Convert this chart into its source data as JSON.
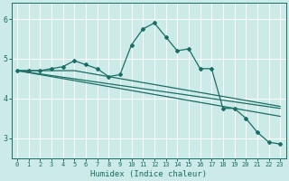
{
  "xlabel": "Humidex (Indice chaleur)",
  "bg_color": "#cceae8",
  "grid_color": "#ffffff",
  "line_color": "#1a6e64",
  "xlim": [
    -0.5,
    23.5
  ],
  "ylim": [
    2.5,
    6.4
  ],
  "yticks": [
    3,
    4,
    5,
    6
  ],
  "xticks": [
    0,
    1,
    2,
    3,
    4,
    5,
    6,
    7,
    8,
    9,
    10,
    11,
    12,
    13,
    14,
    15,
    16,
    17,
    18,
    19,
    20,
    21,
    22,
    23
  ],
  "line1_x": [
    0,
    1,
    2,
    3,
    4,
    5,
    6,
    7,
    8,
    9,
    10,
    11,
    12,
    13,
    14,
    15,
    16,
    17,
    18,
    19,
    20,
    21,
    22,
    23
  ],
  "line1_y": [
    4.7,
    4.7,
    4.7,
    4.75,
    4.8,
    4.95,
    4.85,
    4.75,
    4.55,
    4.6,
    5.35,
    5.75,
    5.9,
    5.55,
    5.2,
    5.25,
    4.75,
    4.75,
    3.75,
    3.75,
    3.5,
    3.15,
    2.9,
    2.85
  ],
  "line2_x": [
    0,
    23
  ],
  "line2_y": [
    4.7,
    3.75
  ],
  "line3_x": [
    0,
    23
  ],
  "line3_y": [
    4.7,
    3.55
  ],
  "line4_x": [
    0,
    1,
    2,
    3,
    4,
    5,
    6,
    7,
    8,
    9,
    10,
    11,
    12,
    13,
    14,
    15,
    16,
    17,
    18,
    19,
    20,
    21,
    22,
    23
  ],
  "line4_y": [
    4.7,
    4.7,
    4.7,
    4.7,
    4.7,
    4.7,
    4.65,
    4.6,
    4.55,
    4.5,
    4.45,
    4.4,
    4.35,
    4.3,
    4.25,
    4.2,
    4.15,
    4.1,
    4.05,
    4.0,
    3.95,
    3.9,
    3.85,
    3.8
  ]
}
